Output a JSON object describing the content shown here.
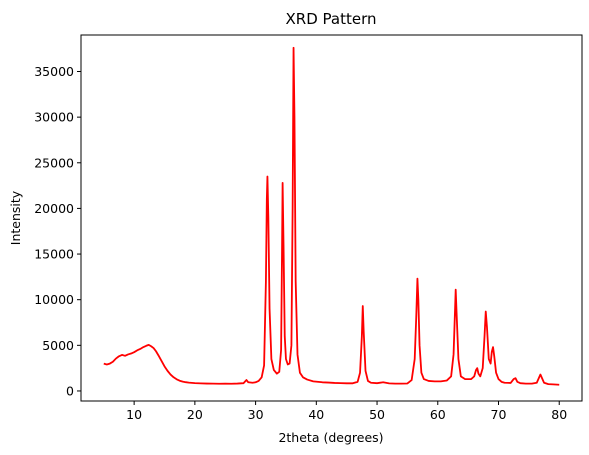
{
  "chart_data": {
    "type": "line",
    "title": "XRD Pattern",
    "xlabel": "2theta (degrees)",
    "ylabel": "Intensity",
    "xlim": [
      1.25,
      83.75
    ],
    "ylim": [
      -1100,
      39000
    ],
    "grid": false,
    "line_color": "#ff0000",
    "x_ticks": [
      10,
      20,
      30,
      40,
      50,
      60,
      70,
      80
    ],
    "y_ticks": [
      0,
      5000,
      10000,
      15000,
      20000,
      25000,
      30000,
      35000
    ],
    "series": [
      {
        "points": [
          [
            5,
            3000
          ],
          [
            5.5,
            2900
          ],
          [
            6,
            3000
          ],
          [
            6.5,
            3200
          ],
          [
            7,
            3550
          ],
          [
            7.5,
            3800
          ],
          [
            8,
            3950
          ],
          [
            8.5,
            3850
          ],
          [
            9,
            4000
          ],
          [
            9.5,
            4100
          ],
          [
            10,
            4250
          ],
          [
            10.5,
            4450
          ],
          [
            11,
            4600
          ],
          [
            11.5,
            4800
          ],
          [
            12,
            4950
          ],
          [
            12.4,
            5050
          ],
          [
            12.8,
            4900
          ],
          [
            13.2,
            4700
          ],
          [
            13.6,
            4350
          ],
          [
            14,
            3900
          ],
          [
            14.5,
            3300
          ],
          [
            15,
            2700
          ],
          [
            15.5,
            2200
          ],
          [
            16,
            1800
          ],
          [
            16.5,
            1500
          ],
          [
            17,
            1280
          ],
          [
            17.5,
            1120
          ],
          [
            18,
            1020
          ],
          [
            18.5,
            960
          ],
          [
            19,
            910
          ],
          [
            20,
            860
          ],
          [
            21,
            830
          ],
          [
            22,
            810
          ],
          [
            23,
            800
          ],
          [
            24,
            790
          ],
          [
            25,
            800
          ],
          [
            26,
            790
          ],
          [
            27,
            810
          ],
          [
            28,
            850
          ],
          [
            28.5,
            1200
          ],
          [
            28.8,
            950
          ],
          [
            29.5,
            900
          ],
          [
            30,
            950
          ],
          [
            30.5,
            1100
          ],
          [
            31,
            1500
          ],
          [
            31.4,
            2800
          ],
          [
            31.7,
            12000
          ],
          [
            31.85,
            21000
          ],
          [
            31.95,
            23500
          ],
          [
            32.1,
            19000
          ],
          [
            32.3,
            9000
          ],
          [
            32.6,
            3500
          ],
          [
            33,
            2300
          ],
          [
            33.5,
            1900
          ],
          [
            33.9,
            2100
          ],
          [
            34.2,
            4500
          ],
          [
            34.35,
            15000
          ],
          [
            34.45,
            22800
          ],
          [
            34.6,
            16000
          ],
          [
            34.8,
            6000
          ],
          [
            35,
            3500
          ],
          [
            35.3,
            2900
          ],
          [
            35.6,
            3000
          ],
          [
            35.9,
            5000
          ],
          [
            36.1,
            20000
          ],
          [
            36.25,
            37600
          ],
          [
            36.4,
            30000
          ],
          [
            36.6,
            12000
          ],
          [
            36.9,
            4000
          ],
          [
            37.3,
            2000
          ],
          [
            37.8,
            1500
          ],
          [
            38.5,
            1250
          ],
          [
            39.5,
            1050
          ],
          [
            41,
            950
          ],
          [
            42,
            920
          ],
          [
            43,
            880
          ],
          [
            44,
            860
          ],
          [
            45,
            840
          ],
          [
            46,
            840
          ],
          [
            46.8,
            1000
          ],
          [
            47.2,
            2000
          ],
          [
            47.5,
            6000
          ],
          [
            47.65,
            9300
          ],
          [
            47.8,
            6500
          ],
          [
            48.1,
            2200
          ],
          [
            48.5,
            1100
          ],
          [
            49,
            900
          ],
          [
            50,
            850
          ],
          [
            51,
            950
          ],
          [
            52,
            830
          ],
          [
            53,
            800
          ],
          [
            54,
            800
          ],
          [
            55,
            820
          ],
          [
            55.7,
            1200
          ],
          [
            56.2,
            3500
          ],
          [
            56.45,
            8000
          ],
          [
            56.65,
            12300
          ],
          [
            56.8,
            10000
          ],
          [
            57,
            5000
          ],
          [
            57.3,
            2000
          ],
          [
            57.7,
            1300
          ],
          [
            58.5,
            1100
          ],
          [
            59.5,
            1050
          ],
          [
            60.5,
            1050
          ],
          [
            61.5,
            1150
          ],
          [
            62.2,
            1600
          ],
          [
            62.6,
            4000
          ],
          [
            62.85,
            9000
          ],
          [
            62.95,
            11100
          ],
          [
            63.1,
            8500
          ],
          [
            63.4,
            3500
          ],
          [
            63.8,
            1600
          ],
          [
            64.5,
            1300
          ],
          [
            65.5,
            1300
          ],
          [
            66,
            1600
          ],
          [
            66.3,
            2300
          ],
          [
            66.5,
            2500
          ],
          [
            66.7,
            1900
          ],
          [
            67,
            1600
          ],
          [
            67.4,
            2500
          ],
          [
            67.7,
            6000
          ],
          [
            67.9,
            8700
          ],
          [
            68.1,
            7000
          ],
          [
            68.4,
            3500
          ],
          [
            68.7,
            3000
          ],
          [
            68.9,
            4300
          ],
          [
            69.1,
            4800
          ],
          [
            69.3,
            3800
          ],
          [
            69.6,
            2000
          ],
          [
            70,
            1300
          ],
          [
            70.5,
            1000
          ],
          [
            71,
            900
          ],
          [
            72,
            880
          ],
          [
            72.5,
            1300
          ],
          [
            72.8,
            1400
          ],
          [
            73.1,
            1000
          ],
          [
            73.6,
            850
          ],
          [
            74.5,
            800
          ],
          [
            75.5,
            800
          ],
          [
            76.3,
            900
          ],
          [
            76.7,
            1500
          ],
          [
            76.9,
            1800
          ],
          [
            77.1,
            1500
          ],
          [
            77.5,
            900
          ],
          [
            78.2,
            750
          ],
          [
            79,
            720
          ],
          [
            80,
            680
          ]
        ]
      }
    ]
  }
}
